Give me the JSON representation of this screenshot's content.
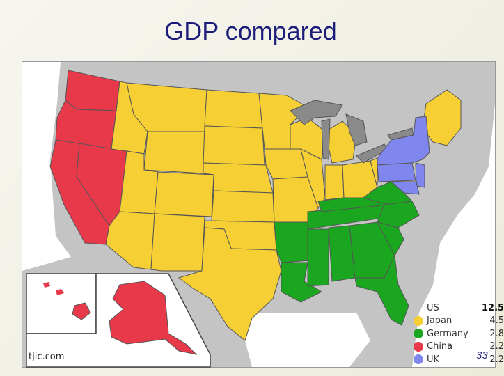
{
  "slide": {
    "title": "GDP compared",
    "page_number": "33"
  },
  "map": {
    "credit": "tjic.com",
    "legend": [
      {
        "name": "US",
        "value": "12.5",
        "color": ""
      },
      {
        "name": "Japan",
        "value": "4.5",
        "color": "#f5cf33"
      },
      {
        "name": "Germany",
        "value": "2.8",
        "color": "#1aa71f"
      },
      {
        "name": "China",
        "value": "2.2",
        "color": "#e8394b"
      },
      {
        "name": "UK",
        "value": "2.2",
        "color": "#7f86ee"
      }
    ],
    "region_colors": {
      "japan": "#f5cf33",
      "germany": "#1aa71f",
      "china": "#e8394b",
      "uk": "#7f86ee",
      "background": "#c4c4c4",
      "water": "#ffffff",
      "great_lakes": "#8a8a8a"
    }
  }
}
